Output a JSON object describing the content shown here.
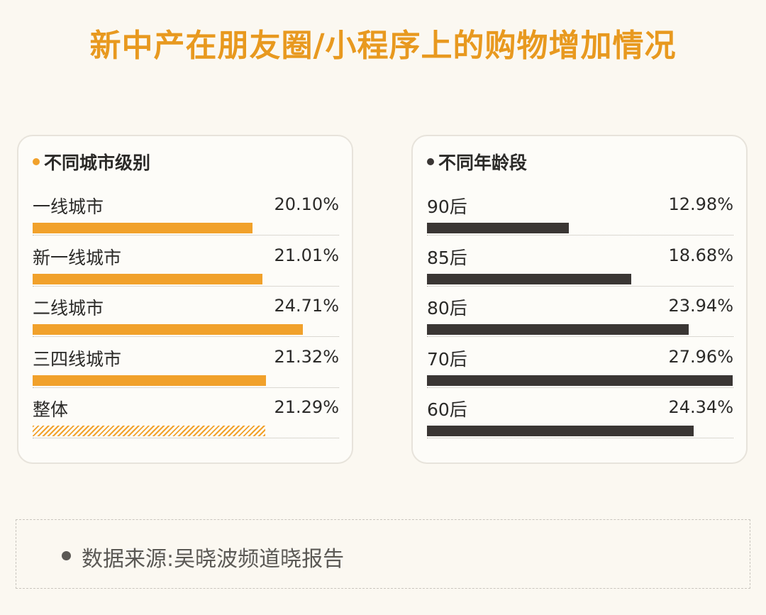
{
  "title": "新中产在朋友圈/小程序上的购物增加情况",
  "colors": {
    "title": "#e8991f",
    "city_bar": "#f1a12b",
    "age_bar": "#3a3634",
    "hatch": "#f1a12b"
  },
  "chart_data": [
    {
      "type": "bar",
      "orientation": "horizontal",
      "title": "不同城市级别",
      "categories": [
        "一线城市",
        "新一线城市",
        "二线城市",
        "三四线城市",
        "整体"
      ],
      "values": [
        20.1,
        21.01,
        24.71,
        21.32,
        21.29
      ],
      "value_labels": [
        "20.10%",
        "21.01%",
        "24.71%",
        "21.32%",
        "21.29%"
      ],
      "hatched_category": "整体",
      "xlim": [
        0,
        28
      ]
    },
    {
      "type": "bar",
      "orientation": "horizontal",
      "title": "不同年龄段",
      "categories": [
        "90后",
        "85后",
        "80后",
        "70后",
        "60后"
      ],
      "values": [
        12.98,
        18.68,
        23.94,
        27.96,
        24.34
      ],
      "value_labels": [
        "12.98%",
        "18.68%",
        "23.94%",
        "27.96%",
        "24.34%"
      ],
      "xlim": [
        0,
        28
      ]
    }
  ],
  "footer": {
    "source": "数据来源:吴晓波频道晓报告"
  }
}
